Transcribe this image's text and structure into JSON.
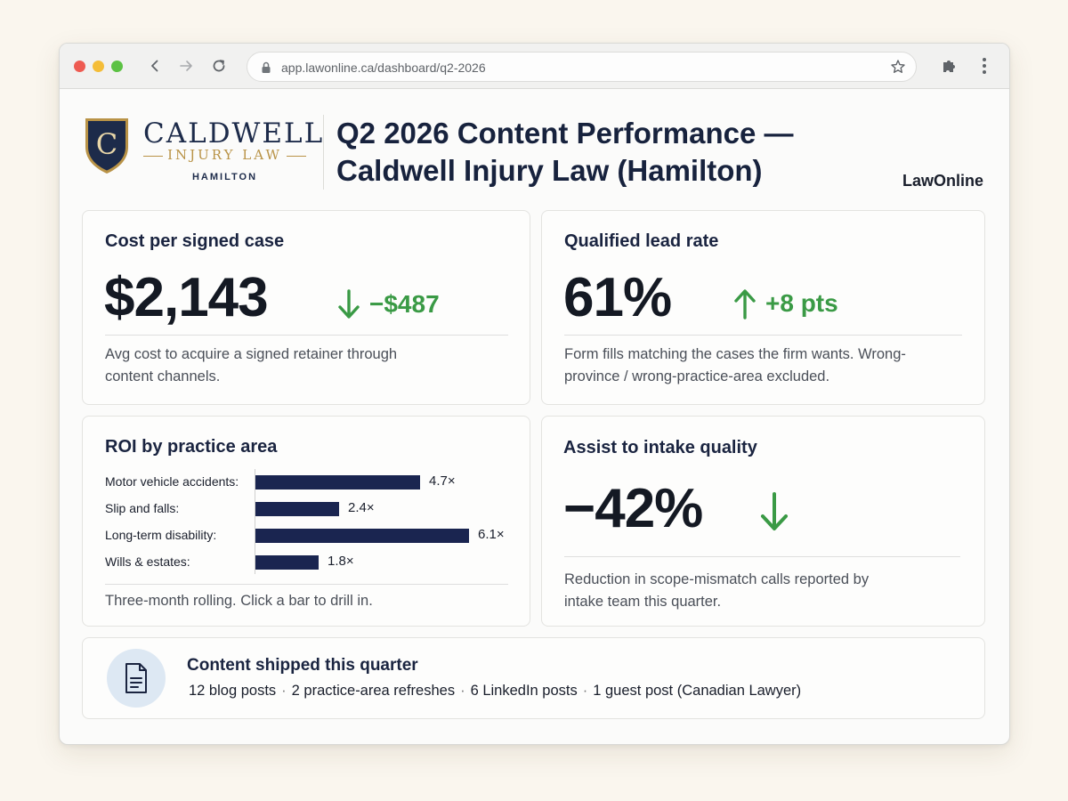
{
  "browser": {
    "url": "app.lawonline.ca/dashboard/q2-2026"
  },
  "brand": {
    "initial": "C",
    "name": "CALDWELL",
    "sub": "INJURY LAW",
    "city": "HAMILTON"
  },
  "header": {
    "title": "Q2 2026 Content Performance — Caldwell Injury Law (Hamilton)",
    "vendor": "LawOnline"
  },
  "cost_card": {
    "title": "Cost per signed case",
    "value": "$2,143",
    "delta": "−$487",
    "delta_direction": "down",
    "description": "Avg cost to acquire a signed retainer through content channels."
  },
  "lead_card": {
    "title": "Qualified lead rate",
    "value": "61%",
    "delta": "+8 pts",
    "delta_direction": "up",
    "description": "Form fills matching the cases the firm wants. Wrong-province / wrong-practice-area excluded."
  },
  "roi_card": {
    "title": "ROI by practice area",
    "footnote": "Three-month rolling. Click a bar to drill in."
  },
  "chart_data": {
    "type": "bar",
    "orientation": "horizontal",
    "title": "ROI by practice area",
    "categories": [
      "Motor vehicle accidents:",
      "Slip and falls:",
      "Long-term disability:",
      "Wills & estates:"
    ],
    "values": [
      4.7,
      2.4,
      6.1,
      1.8
    ],
    "value_labels": [
      "4.7×",
      "2.4×",
      "6.1×",
      "1.8×"
    ],
    "bar_color": "#1a2550",
    "xlim": [
      0,
      6.1
    ]
  },
  "intake_card": {
    "title": "Assist to intake quality",
    "value": "−42%",
    "delta_direction": "down",
    "description": "Reduction in scope-mismatch calls reported by intake team this quarter."
  },
  "shipped": {
    "title": "Content shipped this quarter",
    "items": [
      "12 blog posts",
      "2 practice-area refreshes",
      "6 LinkedIn posts",
      "1 guest post (Canadian Lawyer)"
    ],
    "separator": "·"
  },
  "colors": {
    "accent_green": "#3a9a45",
    "navy": "#1a2550",
    "gold": "#b99347"
  },
  "icons": [
    "back-arrow-icon",
    "forward-arrow-icon",
    "reload-icon",
    "lock-icon",
    "star-icon",
    "extensions-puzzle-icon",
    "kebab-menu-icon",
    "arrow-down-icon",
    "arrow-up-icon",
    "document-icon"
  ]
}
